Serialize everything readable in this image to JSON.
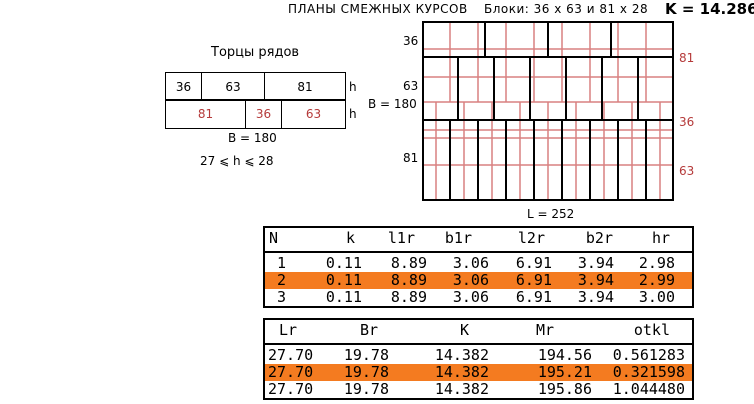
{
  "header": {
    "title": "ПЛАНЫ СМЕЖНЫХ КУРСОВ",
    "blocks_label": "Блоки: 36 х 63   и   81 х 28",
    "k_value": "K = 14.286"
  },
  "end_view": {
    "title": "Торцы рядов",
    "row1": [
      "36",
      "63",
      "81"
    ],
    "row2": [
      "81",
      "36",
      "63"
    ],
    "h_label": "h",
    "width_label": "B = 180",
    "h_range": "27 ⩽ h ⩽ 28"
  },
  "plan": {
    "left_labels": [
      "36",
      "63",
      "81"
    ],
    "right_labels": [
      "81",
      "36",
      "63"
    ],
    "width_label": "B = 180",
    "length_label": "L = 252"
  },
  "table1": {
    "headers": [
      "N",
      "k",
      "l1r",
      "b1r",
      "l2r",
      "b2r",
      "hr"
    ],
    "rows": [
      [
        "1",
        "0.11",
        "8.89",
        "3.06",
        "6.91",
        "3.94",
        "2.98"
      ],
      [
        "2",
        "0.11",
        "8.89",
        "3.06",
        "6.91",
        "3.94",
        "2.99"
      ],
      [
        "3",
        "0.11",
        "8.89",
        "3.06",
        "6.91",
        "3.94",
        "3.00"
      ]
    ],
    "highlight_row": 2
  },
  "table2": {
    "headers": [
      "Lr",
      "Br",
      "K",
      "Mr",
      "otkl"
    ],
    "rows": [
      [
        "27.70",
        "19.78",
        "14.382",
        "194.56",
        "0.561283"
      ],
      [
        "27.70",
        "19.78",
        "14.382",
        "195.21",
        "0.321598"
      ],
      [
        "27.70",
        "19.78",
        "14.382",
        "195.86",
        "1.044480"
      ]
    ],
    "highlight_row": 2
  },
  "colors": {
    "highlight": "#f47b20",
    "red_lines": "#d98080",
    "red_text": "#b53a3a"
  }
}
